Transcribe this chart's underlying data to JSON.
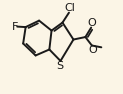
{
  "background_color": "#fbf5e6",
  "bond_color": "#1a1a1a",
  "line_width": 1.4,
  "figsize": [
    1.23,
    0.94
  ],
  "dpi": 100,
  "xlim": [
    -0.05,
    1.05
  ],
  "ylim": [
    0.05,
    0.98
  ]
}
